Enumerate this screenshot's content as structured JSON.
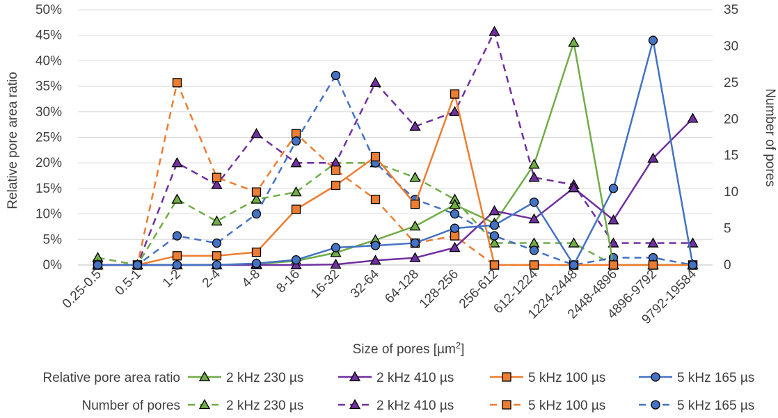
{
  "chart_data": {
    "type": "line",
    "xlabel_prefix": "Size of pores [µm",
    "xlabel_sup": "2",
    "xlabel_suffix": "]",
    "ylabel_left": "Relative pore area ratio",
    "ylabel_right": "Number of pores",
    "yleft_lim": [
      0,
      50
    ],
    "yleft_ticks": [
      "0%",
      "5%",
      "10%",
      "15%",
      "20%",
      "25%",
      "30%",
      "35%",
      "40%",
      "45%",
      "50%"
    ],
    "yright_lim": [
      0,
      35
    ],
    "yright_ticks": [
      "0",
      "5",
      "10",
      "15",
      "20",
      "25",
      "30",
      "35"
    ],
    "grid": true,
    "categories": [
      "0.25-0.5",
      "0.5-1",
      "1-2",
      "2-4",
      "4-8",
      "8-16",
      "16-32",
      "32-64",
      "64-128",
      "128-256",
      "256-612",
      "612-1224",
      "1224-2448",
      "2448-4896",
      "4896-9792",
      "9792-19584"
    ],
    "legend": {
      "row1_title": "Relative pore area ratio",
      "row2_title": "Number of pores",
      "labels": [
        "2 kHz 230 µs",
        "2 kHz 410 µs",
        "5 kHz 100 µs",
        "5 kHz 165 µs"
      ]
    },
    "series": [
      {
        "name": "2 kHz 230 µs",
        "group": "Relative pore area ratio",
        "axis": "left",
        "style": "solid",
        "color": "#70ad47",
        "marker": "triangle",
        "values": [
          0,
          0,
          0,
          0,
          0.2,
          0.8,
          2.4,
          4.9,
          7.6,
          11.8,
          8.2,
          19.7,
          43.6,
          0,
          0,
          0
        ]
      },
      {
        "name": "2 kHz 410 µs",
        "group": "Relative pore area ratio",
        "axis": "left",
        "style": "solid",
        "color": "#7030a0",
        "marker": "triangle",
        "values": [
          0,
          0,
          0,
          0,
          0,
          0,
          0.1,
          0.9,
          1.4,
          3.4,
          10.6,
          9.0,
          15.1,
          8.8,
          20.9,
          28.7
        ]
      },
      {
        "name": "5 kHz 100 µs",
        "group": "Relative pore area ratio",
        "axis": "left",
        "style": "solid",
        "color": "#ed7d31",
        "marker": "square",
        "values": [
          0,
          0,
          1.8,
          1.8,
          2.5,
          10.9,
          15.6,
          21.2,
          11.9,
          33.5,
          0,
          0,
          0,
          0,
          0,
          0
        ]
      },
      {
        "name": "5 kHz 165 µs",
        "group": "Relative pore area ratio",
        "axis": "left",
        "style": "solid",
        "color": "#4472c4",
        "marker": "circle",
        "values": [
          0,
          0,
          0,
          0,
          0.3,
          1.0,
          3.4,
          3.8,
          4.3,
          7.2,
          7.8,
          12.3,
          0,
          15.0,
          44.0,
          0
        ]
      },
      {
        "name": "2 kHz 230 µs",
        "group": "Number of pores",
        "axis": "right",
        "style": "dashed",
        "color": "#70ad47",
        "marker": "triangle",
        "values": [
          1,
          0,
          9,
          6,
          9,
          10,
          14,
          14,
          12,
          9,
          3,
          3,
          3,
          0,
          0,
          0
        ]
      },
      {
        "name": "2 kHz 410 µs",
        "group": "Number of pores",
        "axis": "right",
        "style": "dashed",
        "color": "#7030a0",
        "marker": "triangle",
        "values": [
          0,
          0,
          14,
          11,
          18,
          14,
          14,
          25,
          19,
          21,
          32,
          12,
          11,
          3,
          3,
          3
        ]
      },
      {
        "name": "5 kHz 100 µs",
        "group": "Number of pores",
        "axis": "right",
        "style": "dashed",
        "color": "#ed7d31",
        "marker": "square",
        "values": [
          0,
          0,
          25,
          12,
          10,
          18,
          13,
          9,
          3,
          4,
          0,
          0,
          0,
          0,
          0,
          0
        ]
      },
      {
        "name": "5 kHz 165 µs",
        "group": "Number of pores",
        "axis": "right",
        "style": "dashed",
        "color": "#4472c4",
        "marker": "circle",
        "values": [
          0,
          0,
          4,
          3,
          7,
          17,
          26,
          14,
          9,
          7,
          4,
          2,
          0,
          1,
          1,
          0
        ]
      }
    ]
  }
}
